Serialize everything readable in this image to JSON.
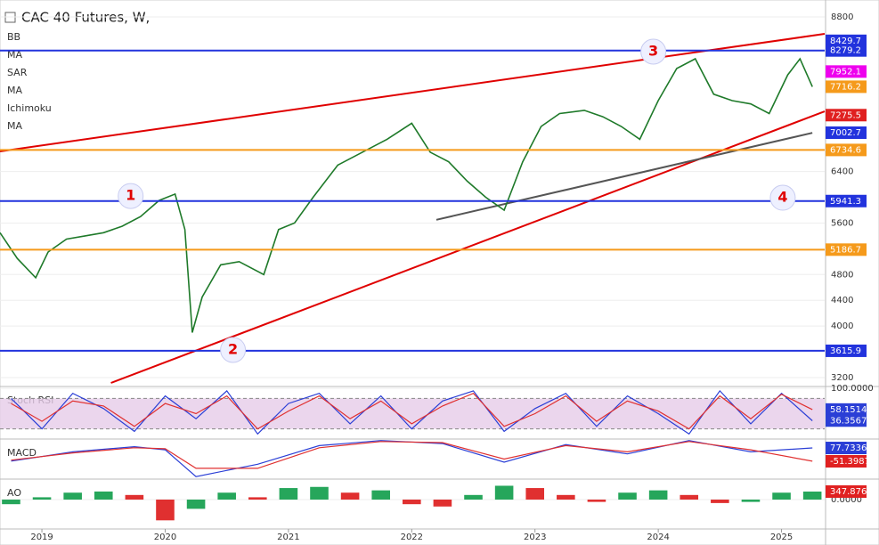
{
  "chart_data": [
    {
      "type": "line",
      "title": "CAC 40 Futures, W,",
      "indicators": [
        "BB",
        "MA",
        "SAR",
        "MA",
        "Ichimoku",
        "MA"
      ],
      "xlim": [
        2018.66,
        2025.35
      ],
      "xticks": [
        2019,
        2020,
        2021,
        2022,
        2023,
        2024,
        2025
      ],
      "ylim": [
        3117,
        8994
      ],
      "yticks": [
        3200,
        4000,
        4400,
        4800,
        5600,
        6400,
        8800
      ],
      "x": [
        2018.66,
        2018.8,
        2018.95,
        2019.05,
        2019.2,
        2019.35,
        2019.5,
        2019.65,
        2019.8,
        2019.95,
        2020.08,
        2020.16,
        2020.22,
        2020.3,
        2020.45,
        2020.6,
        2020.8,
        2020.92,
        2021.05,
        2021.2,
        2021.4,
        2021.6,
        2021.8,
        2022.0,
        2022.15,
        2022.3,
        2022.45,
        2022.6,
        2022.75,
        2022.9,
        2023.05,
        2023.2,
        2023.4,
        2023.55,
        2023.7,
        2023.85,
        2024.0,
        2024.15,
        2024.3,
        2024.45,
        2024.6,
        2024.75,
        2024.9,
        2025.05,
        2025.15,
        2025.25
      ],
      "series": [
        {
          "color": "#1f7a2a",
          "values": [
            5450,
            5050,
            4750,
            5150,
            5350,
            5400,
            5450,
            5550,
            5700,
            5950,
            6050,
            5500,
            3900,
            4450,
            4950,
            5000,
            4800,
            5500,
            5600,
            6000,
            6500,
            6700,
            6900,
            7150,
            6700,
            6550,
            6250,
            6000,
            5800,
            6550,
            7100,
            7300,
            7350,
            7250,
            7100,
            6900,
            7500,
            8000,
            8150,
            7600,
            7500,
            7450,
            7300,
            7900,
            8150,
            7716.2
          ]
        }
      ],
      "trendlines": [
        {
          "color": "#e00000",
          "x": [
            2018.66,
            2025.35
          ],
          "y": [
            6712,
            8537
          ]
        },
        {
          "color": "#e00000",
          "x": [
            2019.56,
            2025.35
          ],
          "y": [
            3117,
            7334
          ]
        },
        {
          "color": "#555555",
          "x": [
            2022.2,
            2025.25
          ],
          "y": [
            5650,
            7000
          ]
        }
      ],
      "price_labels": [
        {
          "value": 8429.7,
          "color": "#2233dd",
          "line": false
        },
        {
          "value": 8279.2,
          "color": "#2233dd",
          "line": true
        },
        {
          "value": 7952.1,
          "color": "#ee00ee",
          "line": false
        },
        {
          "value": 7716.2,
          "color": "#f59a1b",
          "line": false
        },
        {
          "value": 7275.5,
          "color": "#e02020",
          "line": false
        },
        {
          "value": 7002.7,
          "color": "#2233dd",
          "line": false
        },
        {
          "value": 6734.6,
          "color": "#f59a1b",
          "line": true
        },
        {
          "value": 5941.3,
          "color": "#2233dd",
          "line": true
        },
        {
          "value": 5186.7,
          "color": "#f59a1b",
          "line": true
        },
        {
          "value": 3615.9,
          "color": "#2233dd",
          "line": true
        }
      ],
      "annotations": [
        {
          "text": "1",
          "x": 2019.72,
          "y": 6020
        },
        {
          "text": "2",
          "x": 2020.55,
          "y": 3629
        },
        {
          "text": "3",
          "x": 2023.96,
          "y": 8261
        },
        {
          "text": "4",
          "x": 2025.01,
          "y": 5993
        }
      ]
    },
    {
      "type": "line",
      "title": "Stoch RSI",
      "ylim": [
        0,
        100
      ],
      "yticks": [
        {
          "value": 100,
          "label": "100.0000"
        }
      ],
      "band": [
        20,
        80
      ],
      "x": [
        2018.75,
        2019.0,
        2019.25,
        2019.5,
        2019.75,
        2020.0,
        2020.25,
        2020.5,
        2020.75,
        2021.0,
        2021.25,
        2021.5,
        2021.75,
        2022.0,
        2022.25,
        2022.5,
        2022.75,
        2023.0,
        2023.25,
        2023.5,
        2023.75,
        2024.0,
        2024.25,
        2024.5,
        2024.75,
        2025.0,
        2025.25
      ],
      "series": [
        {
          "color": "#2b3fd6",
          "values": [
            80,
            20,
            90,
            60,
            15,
            85,
            40,
            95,
            10,
            70,
            90,
            30,
            85,
            20,
            75,
            95,
            15,
            60,
            90,
            25,
            85,
            50,
            10,
            95,
            30,
            90,
            36
          ]
        },
        {
          "color": "#e03030",
          "values": [
            70,
            35,
            75,
            65,
            25,
            70,
            50,
            85,
            20,
            55,
            85,
            40,
            75,
            30,
            65,
            90,
            25,
            50,
            85,
            35,
            75,
            55,
            20,
            85,
            40,
            88,
            58
          ]
        }
      ],
      "price_labels": [
        {
          "value": 58.1514,
          "color": "#2b3fd6",
          "line": false
        },
        {
          "value": 36.3567,
          "color": "#2b3fd6",
          "line": false
        }
      ]
    },
    {
      "type": "line",
      "title": "MACD",
      "ylim": [
        -224,
        147
      ],
      "yticks": [],
      "x": [
        2018.75,
        2019.25,
        2019.75,
        2020.0,
        2020.25,
        2020.75,
        2021.25,
        2021.75,
        2022.25,
        2022.75,
        2023.25,
        2023.75,
        2024.25,
        2024.75,
        2025.25
      ],
      "series": [
        {
          "color": "#2b3fd6",
          "values": [
            -50,
            40,
            90,
            60,
            -200,
            -80,
            100,
            150,
            120,
            -60,
            110,
            20,
            150,
            40,
            78
          ]
        },
        {
          "color": "#e03030",
          "values": [
            -40,
            30,
            80,
            70,
            -120,
            -120,
            80,
            140,
            130,
            -30,
            100,
            40,
            140,
            60,
            -51
          ]
        }
      ],
      "price_labels": [
        {
          "value": 77.7336,
          "color": "#2b3fd6",
          "line": false
        },
        {
          "value": -51.3987,
          "color": "#e02020",
          "line": false
        }
      ]
    },
    {
      "type": "bar",
      "title": "AO",
      "ylim": [
        -1197,
        811
      ],
      "yticks": [
        {
          "value": 0,
          "label": "0.0000"
        }
      ],
      "x": [
        2018.75,
        2019.0,
        2019.25,
        2019.5,
        2019.75,
        2020.0,
        2020.25,
        2020.5,
        2020.75,
        2021.0,
        2021.25,
        2021.5,
        2021.75,
        2022.0,
        2022.25,
        2022.5,
        2022.75,
        2023.0,
        2023.25,
        2023.5,
        2023.75,
        2024.0,
        2024.25,
        2024.5,
        2024.75,
        2025.0,
        2025.25
      ],
      "values": [
        -200,
        100,
        300,
        350,
        200,
        -900,
        -400,
        300,
        100,
        500,
        550,
        300,
        400,
        -200,
        -300,
        200,
        600,
        500,
        200,
        -100,
        300,
        400,
        200,
        -150,
        -100,
        300,
        348
      ],
      "price_labels": [
        {
          "value": 347.8765,
          "color": "#e02020",
          "line": false
        }
      ]
    }
  ]
}
